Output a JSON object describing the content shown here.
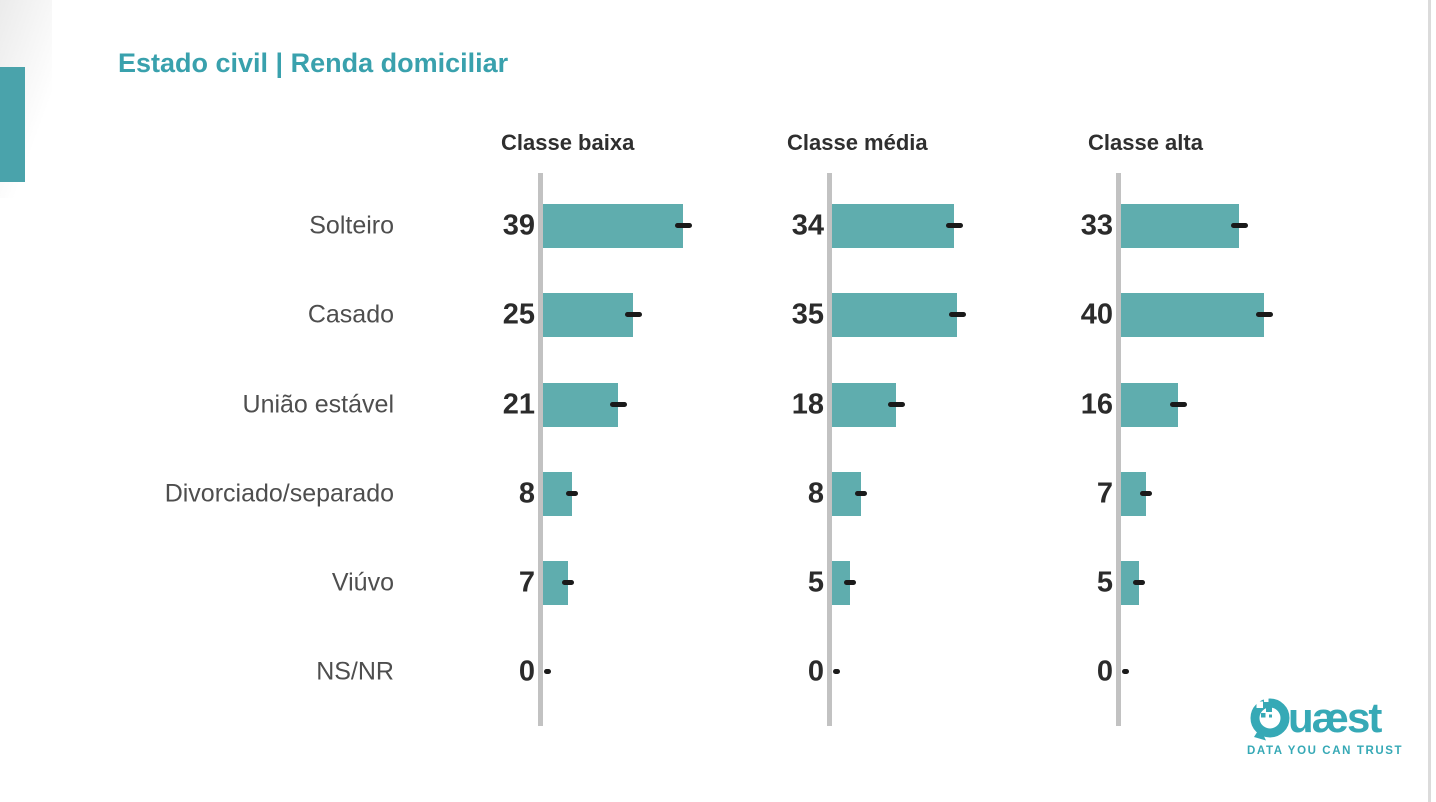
{
  "title": {
    "text": "Estado civil | Renda domiciliar",
    "color": "#39a1ad"
  },
  "chart_data": {
    "type": "bar",
    "orientation": "horizontal",
    "title": "Estado civil | Renda domiciliar",
    "categories": [
      "Solteiro",
      "Casado",
      "União estável",
      "Divorciado/separado",
      "Viúvo",
      "NS/NR"
    ],
    "series": [
      {
        "name": "Classe baixa",
        "values": [
          39,
          25,
          21,
          8,
          7,
          0
        ]
      },
      {
        "name": "Classe média",
        "values": [
          34,
          35,
          18,
          8,
          5,
          0
        ]
      },
      {
        "name": "Classe alta",
        "values": [
          33,
          40,
          16,
          7,
          5,
          0
        ]
      }
    ],
    "xlim": [
      0,
      45
    ],
    "grid": false,
    "legend_position": "column-headers-top",
    "value_labels": "left-of-axis",
    "error_markers": "black dash at bar end",
    "bar_color": "#5fadae",
    "axis_color": "#c2c2c2",
    "error_marker_color": "#1a1a1a",
    "value_label_color": "#2b2b2b",
    "category_label_color": "#4e4e4e",
    "header_color": "#2f2f2f"
  },
  "decor": {
    "accent_bar_color": "#4aa3ab",
    "right_edge_color": "#dbdbdb"
  },
  "logo": {
    "wordmark": "Quæst",
    "tagline": "DATA YOU CAN TRUST",
    "color": "#36a9b6"
  }
}
